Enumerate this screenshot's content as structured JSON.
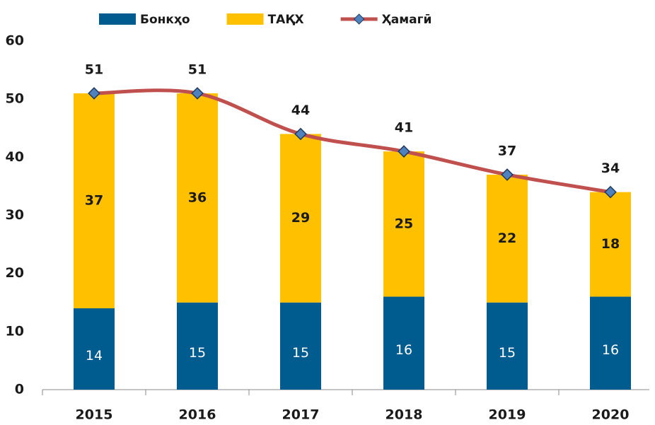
{
  "chart_data": {
    "type": "bar",
    "stacked": true,
    "categories": [
      "2015",
      "2016",
      "2017",
      "2018",
      "2019",
      "2020"
    ],
    "series": [
      {
        "name": "Бонкҳо",
        "color": "#005b8f",
        "values": [
          14,
          15,
          15,
          16,
          15,
          16
        ]
      },
      {
        "name": "ТАҚХ",
        "color": "#ffc000",
        "values": [
          37,
          36,
          29,
          25,
          22,
          18
        ]
      },
      {
        "name": "Ҳамагӣ",
        "type": "line",
        "color": "#c0504d",
        "marker_color": "#4f81bd",
        "values": [
          51,
          51,
          44,
          41,
          37,
          34
        ]
      }
    ],
    "ylim": [
      0,
      60
    ],
    "yticks": [
      0,
      10,
      20,
      30,
      40,
      50,
      60
    ],
    "grid": false,
    "legend": "top"
  }
}
